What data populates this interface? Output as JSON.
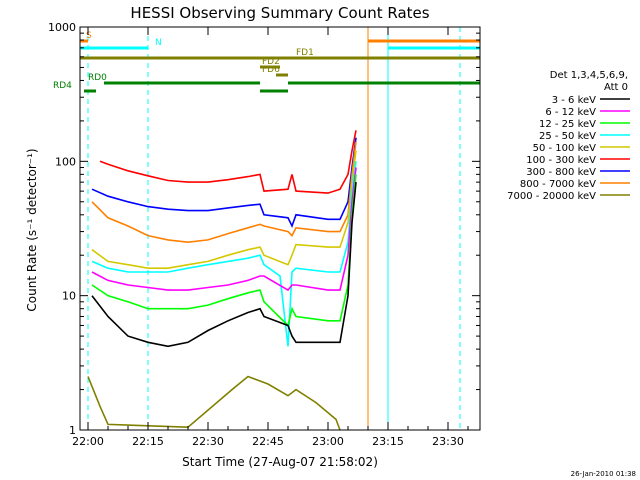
{
  "chart_data": {
    "type": "line",
    "title": "HESSI Observing Summary Count Rates",
    "xlabel": "Start Time (27-Aug-07 21:58:02)",
    "ylabel": "Count Rate (s⁻¹ detector⁻¹)",
    "yscale": "log",
    "ylim": [
      1,
      1000
    ],
    "xlim": [
      "21:58",
      "23:38"
    ],
    "x_ticks": [
      "22:00",
      "22:15",
      "22:30",
      "22:45",
      "23:00",
      "23:15",
      "23:30"
    ],
    "y_ticks": [
      "1",
      "10",
      "100",
      "1000"
    ],
    "legend": {
      "placement": "right",
      "header": [
        "Det 1,3,4,5,6,9,",
        "Att 0"
      ],
      "entries": [
        {
          "label": "3 - 6 keV",
          "color": "#000000"
        },
        {
          "label": "6 - 12 keV",
          "color": "#ff00ff"
        },
        {
          "label": "12 - 25 keV",
          "color": "#00ff00"
        },
        {
          "label": "25 - 50 keV",
          "color": "#00ffff"
        },
        {
          "label": "50 - 100 keV",
          "color": "#d4c800"
        },
        {
          "label": "100 - 300 keV",
          "color": "#ff0000"
        },
        {
          "label": "300 - 800 keV",
          "color": "#0000ff"
        },
        {
          "label": "800 - 7000 keV",
          "color": "#ff8000"
        },
        {
          "label": "7000 - 20000 keV",
          "color": "#808000"
        }
      ]
    },
    "series": [
      {
        "name": "100 - 300 keV",
        "color": "#ff0000",
        "points": [
          [
            "22:03",
            100
          ],
          [
            "22:05",
            95
          ],
          [
            "22:10",
            85
          ],
          [
            "22:15",
            78
          ],
          [
            "22:20",
            72
          ],
          [
            "22:25",
            70
          ],
          [
            "22:30",
            70
          ],
          [
            "22:35",
            73
          ],
          [
            "22:40",
            77
          ],
          [
            "22:43",
            80
          ],
          [
            "22:44",
            60
          ],
          [
            "22:50",
            62
          ],
          [
            "22:51",
            80
          ],
          [
            "22:52",
            60
          ],
          [
            "23:00",
            58
          ],
          [
            "23:03",
            62
          ],
          [
            "23:05",
            80
          ],
          [
            "23:06",
            120
          ],
          [
            "23:07",
            170
          ]
        ]
      },
      {
        "name": "300 - 800 keV",
        "color": "#0000ff",
        "points": [
          [
            "22:01",
            62
          ],
          [
            "22:05",
            55
          ],
          [
            "22:10",
            50
          ],
          [
            "22:15",
            46
          ],
          [
            "22:20",
            44
          ],
          [
            "22:25",
            43
          ],
          [
            "22:30",
            43
          ],
          [
            "22:35",
            45
          ],
          [
            "22:40",
            47
          ],
          [
            "22:43",
            48
          ],
          [
            "22:44",
            40
          ],
          [
            "22:50",
            38
          ],
          [
            "22:51",
            33
          ],
          [
            "22:52",
            40
          ],
          [
            "23:00",
            37
          ],
          [
            "23:03",
            37
          ],
          [
            "23:05",
            50
          ],
          [
            "23:06",
            90
          ],
          [
            "23:07",
            150
          ]
        ]
      },
      {
        "name": "800 - 7000 keV",
        "color": "#ff8000",
        "points": [
          [
            "22:01",
            50
          ],
          [
            "22:05",
            38
          ],
          [
            "22:10",
            33
          ],
          [
            "22:15",
            28
          ],
          [
            "22:20",
            26
          ],
          [
            "22:25",
            25
          ],
          [
            "22:30",
            26
          ],
          [
            "22:35",
            29
          ],
          [
            "22:40",
            32
          ],
          [
            "22:43",
            34
          ],
          [
            "22:44",
            33
          ],
          [
            "22:50",
            30
          ],
          [
            "22:51",
            28
          ],
          [
            "22:52",
            32
          ],
          [
            "23:00",
            30
          ],
          [
            "23:03",
            30
          ],
          [
            "23:05",
            40
          ],
          [
            "23:06",
            80
          ],
          [
            "23:07",
            140
          ]
        ]
      },
      {
        "name": "50 - 100 keV",
        "color": "#d4c800",
        "points": [
          [
            "22:01",
            22
          ],
          [
            "22:05",
            18
          ],
          [
            "22:10",
            17
          ],
          [
            "22:15",
            16
          ],
          [
            "22:20",
            16
          ],
          [
            "22:25",
            17
          ],
          [
            "22:30",
            18
          ],
          [
            "22:35",
            20
          ],
          [
            "22:40",
            22
          ],
          [
            "22:43",
            23
          ],
          [
            "22:44",
            20
          ],
          [
            "22:50",
            17
          ],
          [
            "22:51",
            20
          ],
          [
            "22:52",
            24
          ],
          [
            "23:00",
            23
          ],
          [
            "23:03",
            23
          ],
          [
            "23:05",
            35
          ],
          [
            "23:06",
            70
          ],
          [
            "23:07",
            120
          ]
        ]
      },
      {
        "name": "25 - 50 keV",
        "color": "#00ffff",
        "points": [
          [
            "22:01",
            18
          ],
          [
            "22:05",
            16
          ],
          [
            "22:10",
            15
          ],
          [
            "22:15",
            15
          ],
          [
            "22:20",
            15
          ],
          [
            "22:25",
            16
          ],
          [
            "22:30",
            17
          ],
          [
            "22:35",
            18
          ],
          [
            "22:40",
            19
          ],
          [
            "22:43",
            20
          ],
          [
            "22:44",
            17
          ],
          [
            "22:48",
            14
          ],
          [
            "22:50",
            4.2
          ],
          [
            "22:51",
            15
          ],
          [
            "22:52",
            16
          ],
          [
            "23:00",
            15
          ],
          [
            "23:03",
            15
          ],
          [
            "23:05",
            25
          ],
          [
            "23:06",
            60
          ],
          [
            "23:07",
            100
          ]
        ]
      },
      {
        "name": "6 - 12 keV",
        "color": "#ff00ff",
        "points": [
          [
            "22:01",
            15
          ],
          [
            "22:05",
            13
          ],
          [
            "22:10",
            12
          ],
          [
            "22:15",
            11.5
          ],
          [
            "22:20",
            11
          ],
          [
            "22:25",
            11
          ],
          [
            "22:30",
            11.5
          ],
          [
            "22:35",
            12
          ],
          [
            "22:40",
            13
          ],
          [
            "22:43",
            14
          ],
          [
            "22:44",
            14
          ],
          [
            "22:50",
            11
          ],
          [
            "22:51",
            12
          ],
          [
            "22:52",
            12
          ],
          [
            "23:00",
            11
          ],
          [
            "23:03",
            11
          ],
          [
            "23:05",
            20
          ],
          [
            "23:06",
            50
          ],
          [
            "23:07",
            90
          ]
        ]
      },
      {
        "name": "12 - 25 keV",
        "color": "#00ff00",
        "points": [
          [
            "22:01",
            12
          ],
          [
            "22:05",
            10
          ],
          [
            "22:10",
            9
          ],
          [
            "22:15",
            8
          ],
          [
            "22:20",
            8
          ],
          [
            "22:25",
            8
          ],
          [
            "22:30",
            8.5
          ],
          [
            "22:35",
            9.5
          ],
          [
            "22:40",
            10.5
          ],
          [
            "22:43",
            11
          ],
          [
            "22:44",
            9
          ],
          [
            "22:50",
            6
          ],
          [
            "22:51",
            8
          ],
          [
            "22:52",
            7
          ],
          [
            "23:00",
            6.5
          ],
          [
            "23:03",
            6.5
          ],
          [
            "23:05",
            12
          ],
          [
            "23:06",
            40
          ],
          [
            "23:07",
            80
          ]
        ]
      },
      {
        "name": "3 - 6 keV",
        "color": "#000000",
        "points": [
          [
            "22:01",
            10
          ],
          [
            "22:05",
            7
          ],
          [
            "22:10",
            5
          ],
          [
            "22:15",
            4.5
          ],
          [
            "22:20",
            4.2
          ],
          [
            "22:25",
            4.5
          ],
          [
            "22:30",
            5.5
          ],
          [
            "22:35",
            6.5
          ],
          [
            "22:40",
            7.5
          ],
          [
            "22:43",
            8
          ],
          [
            "22:44",
            7
          ],
          [
            "22:50",
            6
          ],
          [
            "22:51",
            5
          ],
          [
            "22:52",
            4.5
          ],
          [
            "23:00",
            4.5
          ],
          [
            "23:03",
            4.5
          ],
          [
            "23:05",
            10
          ],
          [
            "23:06",
            35
          ],
          [
            "23:07",
            70
          ]
        ]
      },
      {
        "name": "7000 - 20000 keV",
        "color": "#808000",
        "points": [
          [
            "22:00",
            2.5
          ],
          [
            "22:03",
            1.5
          ],
          [
            "22:05",
            1.1
          ],
          [
            "22:25",
            1.05
          ],
          [
            "22:36",
            2.0
          ],
          [
            "22:40",
            2.5
          ],
          [
            "22:45",
            2.2
          ],
          [
            "22:50",
            1.8
          ],
          [
            "22:52",
            2.0
          ],
          [
            "22:57",
            1.6
          ],
          [
            "23:02",
            1.2
          ],
          [
            "23:03",
            1.0
          ]
        ]
      }
    ],
    "flag_bars": [
      {
        "label": "S",
        "color": "#ff8000",
        "segments": [
          [
            "21:58",
            "22:00"
          ],
          [
            "23:10",
            "23:38"
          ]
        ]
      },
      {
        "label": "N",
        "color": "#00ffff",
        "segments": [
          [
            "21:58",
            "22:15"
          ],
          [
            "23:15",
            "23:38"
          ]
        ]
      },
      {
        "label": "FD1",
        "color": "#808000",
        "segments": [
          [
            "21:58",
            "23:38"
          ]
        ]
      },
      {
        "label": "FD2",
        "color": "#808000",
        "segments": [
          [
            "22:43",
            "22:48"
          ]
        ]
      },
      {
        "label": "FD6",
        "color": "#808000",
        "segments": [
          [
            "22:47",
            "22:50"
          ]
        ]
      },
      {
        "label": "RD0",
        "color": "#008000",
        "segments": [
          [
            "22:04",
            "22:43"
          ],
          [
            "22:50",
            "23:38"
          ]
        ]
      },
      {
        "label": "RD4",
        "color": "#008000",
        "segments": [
          [
            "21:59",
            "22:02"
          ],
          [
            "22:43",
            "22:50"
          ]
        ]
      }
    ],
    "vlines": [
      {
        "x": "22:00",
        "color": "#00ffff",
        "style": "dashed"
      },
      {
        "x": "22:15",
        "color": "#00ffff",
        "style": "dashed"
      },
      {
        "x": "23:10",
        "color": "#ff8000",
        "style": "solid"
      },
      {
        "x": "23:15",
        "color": "#00ffff",
        "style": "solid"
      },
      {
        "x": "23:33",
        "color": "#ff8000",
        "style": "dashed"
      },
      {
        "x": "23:33",
        "color": "#00ffff",
        "style": "dashed"
      }
    ],
    "footer_stamp": "26-Jan-2010 01:38"
  }
}
